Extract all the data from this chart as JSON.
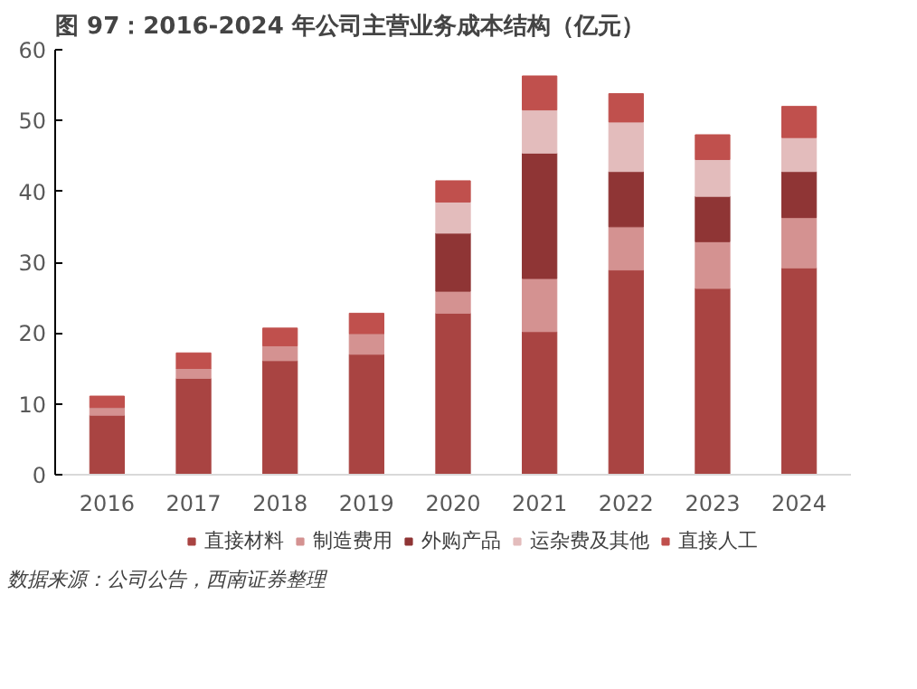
{
  "chart_data": {
    "type": "bar",
    "title": "图 97：2016-2024 年公司主营业务成本结构（亿元）",
    "categories": [
      "2016",
      "2017",
      "2018",
      "2019",
      "2020",
      "2021",
      "2022",
      "2023",
      "2024"
    ],
    "stacked": true,
    "ylim": [
      0,
      60
    ],
    "yticks": [
      0,
      10,
      20,
      30,
      40,
      50,
      60
    ],
    "grid": false,
    "legend": "bottom",
    "series": [
      {
        "name": "直接材料",
        "color": "#a94442",
        "values": [
          8.4,
          13.6,
          16.1,
          17.0,
          22.8,
          20.2,
          28.9,
          26.3,
          29.2
        ]
      },
      {
        "name": "制造费用",
        "color": "#d49291",
        "values": [
          1.1,
          1.4,
          2.1,
          2.9,
          3.1,
          7.5,
          6.1,
          6.6,
          7.1
        ]
      },
      {
        "name": "外购产品",
        "color": "#8f3535",
        "values": [
          0,
          0,
          0,
          0,
          8.2,
          17.7,
          7.8,
          6.4,
          6.5
        ]
      },
      {
        "name": "运杂费及其他",
        "color": "#e3bcbc",
        "values": [
          0,
          0,
          0,
          0,
          4.4,
          6.1,
          7.0,
          5.2,
          4.8
        ]
      },
      {
        "name": "直接人工",
        "color": "#c0504d",
        "values": [
          1.6,
          2.2,
          2.5,
          2.9,
          3.0,
          4.8,
          4.0,
          3.5,
          4.4
        ]
      }
    ],
    "annotations": [
      "数据来源：公司公告，西南证券整理"
    ]
  }
}
